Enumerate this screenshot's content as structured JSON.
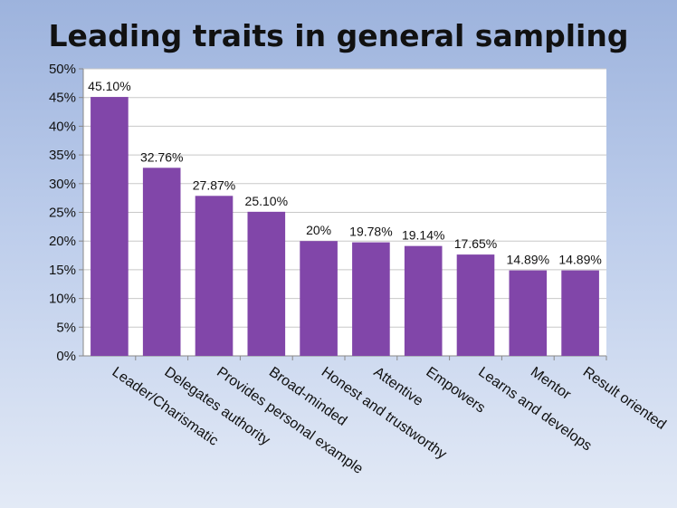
{
  "chart_data": {
    "type": "bar",
    "title": "Leading traits in general sampling",
    "xlabel": "",
    "ylabel": "",
    "ylim": [
      0,
      50
    ],
    "ytick_labels": [
      "0%",
      "5%",
      "10%",
      "15%",
      "20%",
      "25%",
      "30%",
      "35%",
      "40%",
      "45%",
      "50%"
    ],
    "categories": [
      "Leader/Charismatic",
      "Delegates authority",
      "Provides personal example",
      "Broad-minded",
      "Honest and trustworthy",
      "Attentive",
      "Empowers",
      "Learns and develops",
      "Mentor",
      "Result oriented"
    ],
    "values": [
      45.1,
      32.76,
      27.87,
      25.1,
      20,
      19.78,
      19.14,
      17.65,
      14.89,
      14.89
    ],
    "data_labels": [
      "45.10%",
      "32.76%",
      "27.87%",
      "25.10%",
      "20%",
      "19.78%",
      "19.14%",
      "17.65%",
      "14.89%",
      "14.89%"
    ],
    "grid": true,
    "legend": "none",
    "colors": {
      "bar": "#8146a9",
      "plot_bg": "#ffffff",
      "grid": "#c8c8c8"
    }
  }
}
